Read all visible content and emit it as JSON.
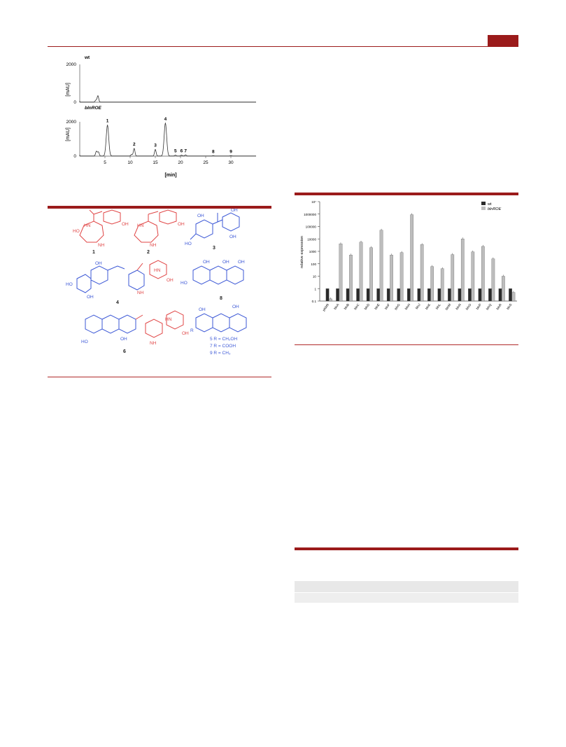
{
  "hplc": {
    "ylabel": "[mAU]",
    "xlabel": "[min]",
    "x_ticks": [
      "5",
      "10",
      "15",
      "20",
      "25",
      "30"
    ],
    "y_tick_top": "2000",
    "y_tick_zero": "0",
    "panel_wt": {
      "label": "wt",
      "peaks": [
        {
          "rt": 3.6,
          "height": 420
        },
        {
          "rt": 3.2,
          "height": 120
        }
      ]
    },
    "panel_oe": {
      "label": "blnROE",
      "peaks": [
        {
          "label": "1",
          "rt": 5.5,
          "height": 2250
        },
        {
          "label": "2",
          "rt": 10.8,
          "height": 560
        },
        {
          "label": "3",
          "rt": 15.0,
          "height": 480
        },
        {
          "label": "4",
          "rt": 17.0,
          "height": 2400
        },
        {
          "label": "5",
          "rt": 19.0,
          "height": 60
        },
        {
          "label": "6",
          "rt": 20.2,
          "height": 60
        },
        {
          "label": "7",
          "rt": 21.0,
          "height": 80
        },
        {
          "label": "8",
          "rt": 26.5,
          "height": 30
        },
        {
          "label": "9",
          "rt": 30.0,
          "height": 30
        }
      ],
      "minor_peaks": [
        {
          "rt": 3.3,
          "height": 350
        },
        {
          "rt": 3.7,
          "height": 300
        },
        {
          "rt": 10.3,
          "height": 120
        }
      ]
    }
  },
  "structures": {
    "compound_labels": [
      "1",
      "2",
      "3",
      "4",
      "8",
      "6"
    ],
    "r_groups": [
      "5 R = CH₂OH",
      "7 R = COOH",
      "9 R = CH₃"
    ],
    "atom_labels": {
      "c1_ho": "HO",
      "c1_hn": "HN",
      "c1_nh": "NH",
      "c1_oh": "OH",
      "c2_hn": "HN",
      "c2_nh": "NH",
      "c2_oh": "OH",
      "c3_oh1": "OH",
      "c3_oh2": "OH",
      "c3_oh3": "OH",
      "c3_ho": "HO",
      "c4_ho": "HO",
      "c4_oh1": "OH",
      "c4_oh2": "OH",
      "c4_hn": "HN",
      "c4_nh": "NH",
      "c4_oh3": "OH",
      "c8_oh1": "OH",
      "c8_oh2": "OH",
      "c8_oh3": "OH",
      "c8_ho": "HO",
      "c6_ho": "HO",
      "c6_oh": "OH",
      "c6_hn": "HN",
      "c6_nh": "NH",
      "c6_oh2": "OH",
      "c579_oh": "OH",
      "c579_oh2": "OH",
      "c579_r": "R"
    }
  },
  "chart_data": {
    "type": "bar",
    "ylabel": "relative expression",
    "yscale": "log",
    "ylim": [
      0.1,
      10000000
    ],
    "y_ticks": [
      "10⁷",
      "1000000",
      "100000",
      "10000",
      "1000",
      "100",
      "10",
      "1",
      "0.1"
    ],
    "categories": [
      "pKM9",
      "blnA",
      "blnB",
      "blnC",
      "blnD",
      "blnE",
      "blnF",
      "blnG",
      "blnH",
      "blnJ",
      "blnK",
      "blnL",
      "blnM",
      "blnN",
      "blnO",
      "blnP",
      "blnQ",
      "blnR",
      "blnS"
    ],
    "series": [
      {
        "name": "wt",
        "color": "#2a2a2a",
        "values": [
          1,
          1,
          1,
          1,
          1,
          1,
          1,
          1,
          1,
          1,
          1,
          1,
          1,
          1,
          1,
          1,
          1,
          1,
          1
        ]
      },
      {
        "name": "blnROE",
        "color": "#bdbdbd",
        "values": [
          0.15,
          4000,
          500,
          5500,
          2000,
          50000,
          500,
          800,
          900000,
          3500,
          60,
          40,
          550,
          10000,
          900,
          2500,
          250,
          10,
          0.5
        ]
      }
    ],
    "legend": "top-right"
  }
}
